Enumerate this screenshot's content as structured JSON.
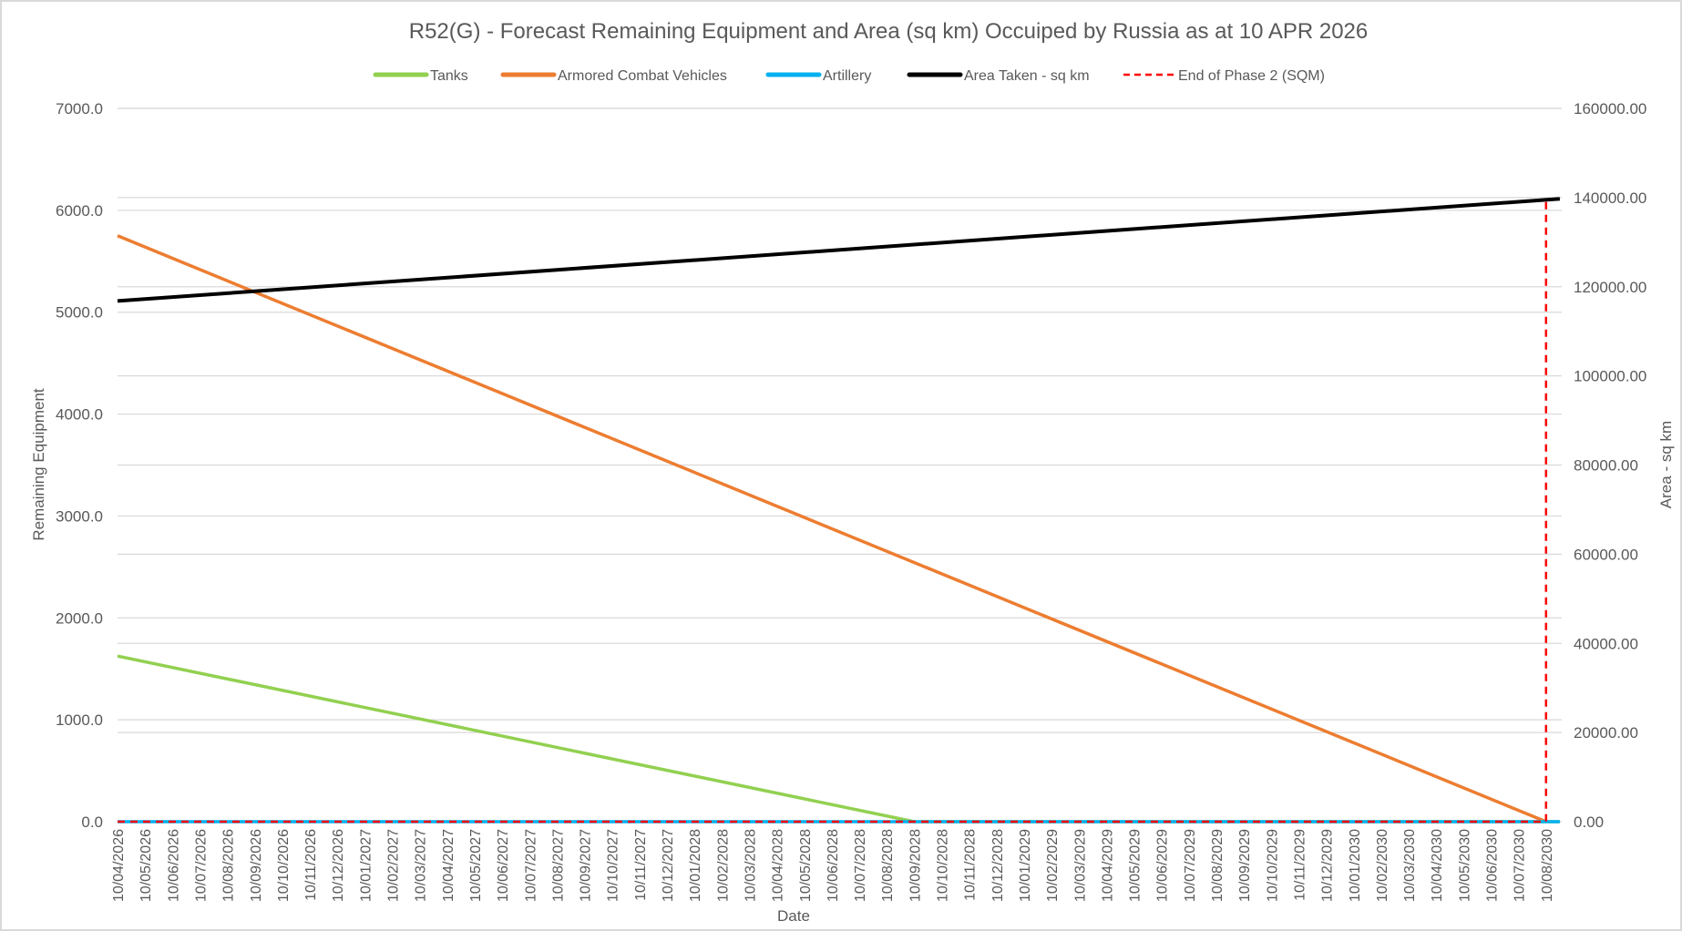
{
  "chart_data": {
    "type": "line",
    "title": "R52(G) - Forecast Remaining Equipment and Area (sq km) Occuiped by Russia as at 10 APR 2026",
    "xlabel": "Date",
    "ylabel": "Remaining Equipment",
    "y2label": "Area - sq km",
    "ylim": [
      0,
      7000
    ],
    "y2lim": [
      0,
      160000
    ],
    "yticks": [
      "0.0",
      "1000.0",
      "2000.0",
      "3000.0",
      "4000.0",
      "5000.0",
      "6000.0",
      "7000.0"
    ],
    "y2ticks": [
      "0.00",
      "20000.00",
      "40000.00",
      "60000.00",
      "80000.00",
      "100000.00",
      "120000.00",
      "140000.00",
      "160000.00"
    ],
    "grid": true,
    "legend_position": "top",
    "categories": [
      "10/04/2026",
      "10/05/2026",
      "10/06/2026",
      "10/07/2026",
      "10/08/2026",
      "10/09/2026",
      "10/10/2026",
      "10/11/2026",
      "10/12/2026",
      "10/01/2027",
      "10/02/2027",
      "10/03/2027",
      "10/04/2027",
      "10/05/2027",
      "10/06/2027",
      "10/07/2027",
      "10/08/2027",
      "10/09/2027",
      "10/10/2027",
      "10/11/2027",
      "10/12/2027",
      "10/01/2028",
      "10/02/2028",
      "10/03/2028",
      "10/04/2028",
      "10/05/2028",
      "10/06/2028",
      "10/07/2028",
      "10/08/2028",
      "10/09/2028",
      "10/10/2028",
      "10/11/2028",
      "10/12/2028",
      "10/01/2029",
      "10/02/2029",
      "10/03/2029",
      "10/04/2029",
      "10/05/2029",
      "10/06/2029",
      "10/07/2029",
      "10/08/2029",
      "10/09/2029",
      "10/10/2029",
      "10/11/2029",
      "10/12/2029",
      "10/01/2030",
      "10/02/2030",
      "10/03/2030",
      "10/04/2030",
      "10/05/2030",
      "10/06/2030",
      "10/07/2030",
      "10/08/2030"
    ],
    "x_unit": "months since 10/04/2026",
    "series": [
      {
        "name": "Tanks",
        "color": "#92d050",
        "axis": "left",
        "points": [
          [
            0,
            1625
          ],
          [
            29,
            0
          ],
          [
            52.5,
            0
          ]
        ]
      },
      {
        "name": "Armored Combat Vehicles",
        "color": "#ed7d31",
        "axis": "left",
        "points": [
          [
            0,
            5750
          ],
          [
            52,
            0
          ]
        ]
      },
      {
        "name": "Artillery",
        "color": "#00b0f0",
        "axis": "left",
        "points": [
          [
            0,
            0
          ],
          [
            52.5,
            0
          ]
        ]
      },
      {
        "name": "Area Taken - sq km",
        "color": "#000000",
        "axis": "right",
        "points": [
          [
            0,
            116800
          ],
          [
            52.5,
            139700
          ]
        ]
      },
      {
        "name": "End of Phase 2 (SQM)",
        "color": "#ff0000",
        "axis": "right",
        "dashed": true,
        "points": [
          [
            0,
            0
          ],
          [
            52,
            0
          ],
          [
            52,
            139700
          ]
        ]
      }
    ]
  }
}
